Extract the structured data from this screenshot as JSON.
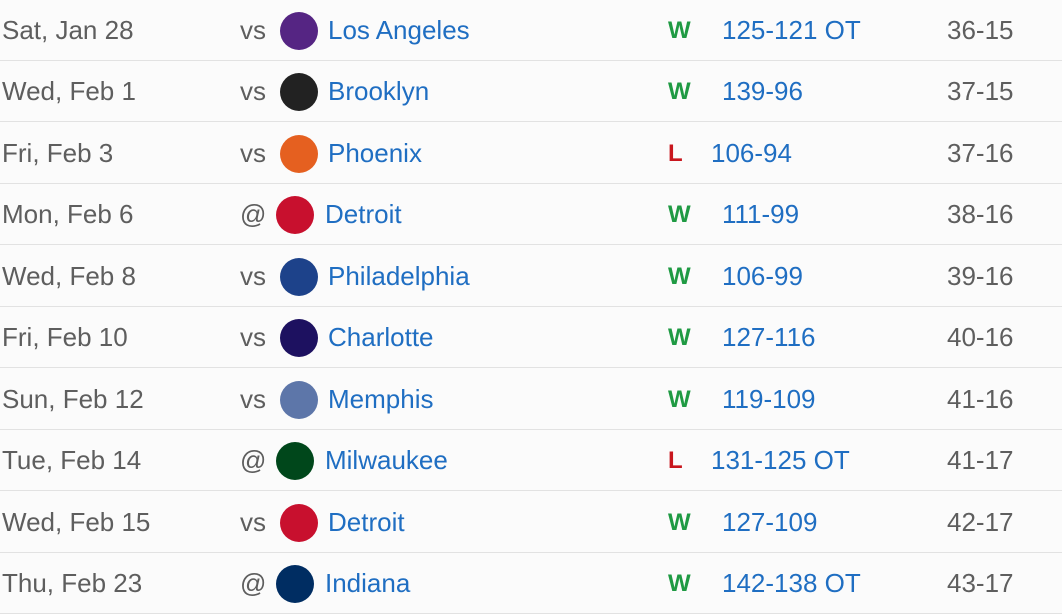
{
  "schedule": {
    "rows": [
      {
        "date": "Sat, Jan 28",
        "location": "vs",
        "opponent": "Los Angeles",
        "result": "W",
        "score": "125-121 OT",
        "record": "36-15"
      },
      {
        "date": "Wed, Feb 1",
        "location": "vs",
        "opponent": "Brooklyn",
        "result": "W",
        "score": "139-96",
        "record": "37-15"
      },
      {
        "date": "Fri, Feb 3",
        "location": "vs",
        "opponent": "Phoenix",
        "result": "L",
        "score": "106-94",
        "record": "37-16"
      },
      {
        "date": "Mon, Feb 6",
        "location": "@",
        "opponent": "Detroit",
        "result": "W",
        "score": "111-99",
        "record": "38-16"
      },
      {
        "date": "Wed, Feb 8",
        "location": "vs",
        "opponent": "Philadelphia",
        "result": "W",
        "score": "106-99",
        "record": "39-16"
      },
      {
        "date": "Fri, Feb 10",
        "location": "vs",
        "opponent": "Charlotte",
        "result": "W",
        "score": "127-116",
        "record": "40-16"
      },
      {
        "date": "Sun, Feb 12",
        "location": "vs",
        "opponent": "Memphis",
        "result": "W",
        "score": "119-109",
        "record": "41-16"
      },
      {
        "date": "Tue, Feb 14",
        "location": "@",
        "opponent": "Milwaukee",
        "result": "L",
        "score": "131-125 OT",
        "record": "41-17"
      },
      {
        "date": "Wed, Feb 15",
        "location": "vs",
        "opponent": "Detroit",
        "result": "W",
        "score": "127-109",
        "record": "42-17"
      },
      {
        "date": "Thu, Feb 23",
        "location": "@",
        "opponent": "Indiana",
        "result": "W",
        "score": "142-138 OT",
        "record": "43-17"
      }
    ]
  }
}
